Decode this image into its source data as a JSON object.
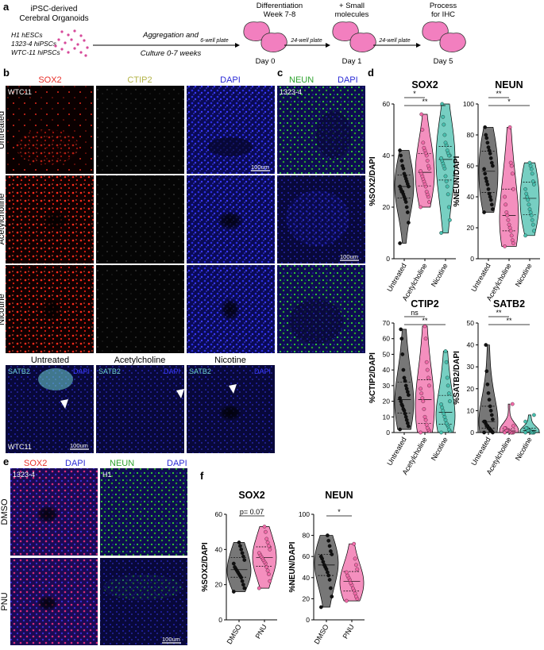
{
  "panel_labels": {
    "a": "a",
    "b": "b",
    "c": "c",
    "d": "d",
    "e": "e",
    "f": "f"
  },
  "workflow": {
    "source_title": [
      "iPSC-derived",
      "Cerebral Organoids"
    ],
    "lines": [
      "H1 hESCs",
      "1323-4 hiPSCs",
      "WTC-11 hiPSCs"
    ],
    "step1": [
      "Aggregation and",
      "Culture 0-7 weeks"
    ],
    "plate1": "6-well plate",
    "step2": [
      "Differentiation",
      "Week 7-8"
    ],
    "day0": "Day 0",
    "plate2": "24-well plate",
    "step3": [
      "+ Small",
      "molecules"
    ],
    "day1": "Day 1",
    "plate3": "24-well plate",
    "step4": [
      "Process",
      "for IHC"
    ],
    "day5": "Day 5"
  },
  "panel_b": {
    "channels": {
      "sox2": "SOX2",
      "ctip2": "CTIP2",
      "dapi": "DAPI"
    },
    "line_label": "WTC11",
    "rows": [
      "Untreated",
      "Acetylcholine",
      "Nicotine"
    ],
    "scale": "100um",
    "satb2_cols": [
      "Untreated",
      "Acetylcholine",
      "Nicotine"
    ],
    "satb2_tag": "SATB2",
    "dapi_tag": "DAPI",
    "satb2_line": "WTC11",
    "satb2_scale": "100um"
  },
  "panel_c": {
    "neun": "NEUN",
    "dapi": "DAPI",
    "line_label": "1323-4",
    "scale": "100um"
  },
  "panel_e": {
    "sox2": "SOX2",
    "dapi": "DAPI",
    "neun": "NEUN",
    "dapi2": "DAPI",
    "line1": "1323-4",
    "line2": "H1",
    "rows": [
      "DMSO",
      "PNU"
    ],
    "scale": "100um"
  },
  "colors": {
    "sox2": "#e8302a",
    "ctip2": "#b3b347",
    "dapi": "#2a2ad6",
    "neun": "#2ea32e",
    "satb2": "#6fd3d3",
    "untreated": "#4a4a4a",
    "acetylcholine": "#f06aa8",
    "nicotine": "#49bfae",
    "dmso": "#4a4a4a",
    "pnu": "#f06aa8"
  },
  "chart_data": [
    {
      "type": "violin",
      "title": "SOX2",
      "ylabel": "%SOX2/DAPI",
      "categories": [
        "Untreated",
        "Acetylcholine",
        "Nicotine"
      ],
      "ylim": [
        0,
        60
      ],
      "yticks": [
        0,
        20,
        40,
        60
      ],
      "sig": [
        {
          "label": "*",
          "from": "Untreated",
          "to": "Acetylcholine"
        },
        {
          "label": "**",
          "from": "Untreated",
          "to": "Nicotine"
        }
      ],
      "series": [
        {
          "values": [
            6,
            14,
            18,
            20,
            22,
            23,
            24,
            25,
            26,
            26,
            27,
            28,
            28,
            29,
            30,
            31,
            32,
            33,
            35,
            36,
            38,
            40,
            42
          ]
        },
        {
          "values": [
            20,
            22,
            24,
            25,
            26,
            28,
            29,
            30,
            31,
            32,
            33,
            34,
            35,
            36,
            38,
            40,
            41,
            42,
            43,
            45,
            50,
            56
          ]
        },
        {
          "values": [
            10,
            15,
            20,
            25,
            28,
            30,
            32,
            35,
            36,
            37,
            38,
            39,
            40,
            40,
            41,
            42,
            44,
            45,
            48,
            52,
            55,
            60
          ]
        }
      ]
    },
    {
      "type": "violin",
      "title": "NEUN",
      "ylabel": "%NEUN/DAPI",
      "categories": [
        "Untreated",
        "Acetylcholine",
        "Nicotine"
      ],
      "ylim": [
        0,
        100
      ],
      "yticks": [
        0,
        20,
        40,
        60,
        80,
        100
      ],
      "sig": [
        {
          "label": "**",
          "from": "Untreated",
          "to": "Acetylcholine"
        },
        {
          "label": "*",
          "from": "Untreated",
          "to": "Nicotine"
        }
      ],
      "series": [
        {
          "values": [
            30,
            32,
            35,
            38,
            40,
            42,
            45,
            48,
            50,
            52,
            55,
            58,
            60,
            62,
            65,
            68,
            70,
            72,
            75,
            78,
            80,
            85
          ]
        },
        {
          "values": [
            8,
            10,
            12,
            15,
            18,
            20,
            22,
            25,
            28,
            30,
            35,
            40,
            45,
            55,
            60,
            62,
            85
          ]
        },
        {
          "values": [
            15,
            18,
            22,
            25,
            28,
            30,
            32,
            35,
            38,
            40,
            42,
            45,
            48,
            50,
            55,
            58,
            60,
            62
          ]
        }
      ]
    },
    {
      "type": "violin",
      "title": "CTIP2",
      "ylabel": "%CTIP2/DAPI",
      "categories": [
        "Untreated",
        "Acetylcholine",
        "Nicotine"
      ],
      "ylim": [
        0,
        70
      ],
      "yticks": [
        0,
        10,
        20,
        30,
        40,
        50,
        60,
        70
      ],
      "sig": [
        {
          "label": "ns",
          "from": "Untreated",
          "to": "Acetylcholine"
        },
        {
          "label": "**",
          "from": "Untreated",
          "to": "Nicotine"
        }
      ],
      "series": [
        {
          "values": [
            2,
            4,
            6,
            8,
            10,
            12,
            14,
            15,
            17,
            18,
            20,
            22,
            24,
            26,
            28,
            30,
            33,
            35,
            40,
            50,
            60,
            66
          ]
        },
        {
          "values": [
            0,
            1,
            2,
            3,
            5,
            8,
            10,
            15,
            20,
            22,
            25,
            28,
            30,
            35,
            40,
            45,
            60,
            68
          ]
        },
        {
          "values": [
            0,
            1,
            2,
            4,
            5,
            6,
            8,
            10,
            12,
            14,
            16,
            18,
            20,
            25,
            30,
            35,
            45,
            52
          ]
        }
      ]
    },
    {
      "type": "violin",
      "title": "SATB2",
      "ylabel": "%SATB2/DAPI",
      "categories": [
        "Untreated",
        "Acetylcholine",
        "Nicotine"
      ],
      "ylim": [
        0,
        50
      ],
      "yticks": [
        0,
        10,
        20,
        30,
        40,
        50
      ],
      "sig": [
        {
          "label": "**",
          "from": "Untreated",
          "to": "Acetylcholine"
        },
        {
          "label": "**",
          "from": "Untreated",
          "to": "Nicotine"
        }
      ],
      "series": [
        {
          "values": [
            0,
            0,
            0.5,
            1,
            1,
            2,
            2,
            3,
            3,
            4,
            5,
            5,
            6,
            8,
            10,
            12,
            15,
            18,
            22,
            28,
            40
          ]
        },
        {
          "values": [
            0,
            0,
            0,
            0,
            0,
            0.5,
            0.5,
            1,
            1,
            1,
            2,
            2,
            3,
            13
          ]
        },
        {
          "values": [
            0,
            0,
            0,
            0,
            0,
            0.5,
            1,
            1,
            1,
            2,
            2,
            5,
            8
          ]
        }
      ]
    },
    {
      "type": "violin",
      "title": "SOX2",
      "ylabel": "%SOX2/DAPI",
      "categories": [
        "DMSO",
        "PNU"
      ],
      "ylim": [
        0,
        60
      ],
      "yticks": [
        0,
        20,
        40,
        60
      ],
      "sig": [
        {
          "label": "p= 0.07",
          "from": "DMSO",
          "to": "PNU"
        }
      ],
      "series": [
        {
          "values": [
            16,
            18,
            20,
            22,
            24,
            25,
            26,
            27,
            28,
            29,
            30,
            32,
            34,
            36,
            38,
            40,
            42,
            44
          ]
        },
        {
          "values": [
            18,
            22,
            26,
            28,
            30,
            32,
            33,
            34,
            35,
            36,
            37,
            38,
            40,
            42,
            44,
            46,
            50,
            53
          ]
        }
      ]
    },
    {
      "type": "violin",
      "title": "NEUN",
      "ylabel": "%NEUN/DAPI",
      "categories": [
        "DMSO",
        "PNU"
      ],
      "ylim": [
        0,
        100
      ],
      "yticks": [
        0,
        20,
        40,
        60,
        80,
        100
      ],
      "sig": [
        {
          "label": "*",
          "from": "DMSO",
          "to": "PNU"
        }
      ],
      "series": [
        {
          "values": [
            12,
            22,
            30,
            38,
            42,
            45,
            48,
            50,
            52,
            55,
            58,
            60,
            62,
            65,
            70,
            75,
            80
          ]
        },
        {
          "values": [
            18,
            20,
            22,
            25,
            28,
            30,
            33,
            35,
            38,
            40,
            42,
            45,
            48,
            52,
            58,
            72
          ]
        }
      ]
    }
  ]
}
